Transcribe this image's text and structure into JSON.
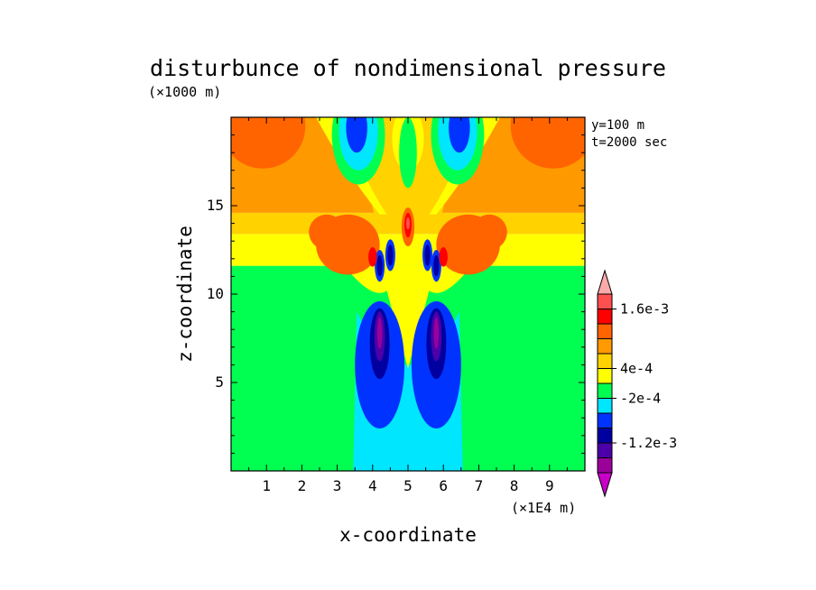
{
  "chart_data": {
    "type": "heatmap",
    "title": "disturbunce of nondimensional pressure",
    "xlabel": "x-coordinate",
    "ylabel": "z-coordinate",
    "x_unit": "(×1E4 m)",
    "y_unit": "(×1000 m)",
    "annotations": [
      "y=100 m",
      "t=2000 sec"
    ],
    "xlim": [
      0,
      10
    ],
    "ylim": [
      0,
      20
    ],
    "x_ticks": [
      1,
      2,
      3,
      4,
      5,
      6,
      7,
      8,
      9
    ],
    "y_ticks": [
      5,
      10,
      15
    ],
    "colorbar": {
      "levels": [
        -0.0018,
        -0.0015,
        -0.0012,
        -0.0009,
        -0.0006,
        -0.0002,
        0.0001,
        0.0004,
        0.0007,
        0.001,
        0.0013,
        0.0016,
        0.0019
      ],
      "colors": [
        "#c800c8",
        "#9b009b",
        "#4b00aa",
        "#0000a0",
        "#0033ff",
        "#00e6ff",
        "#00ff50",
        "#ffff00",
        "#ffd200",
        "#ff9900",
        "#ff6400",
        "#ff0000",
        "#ff5050",
        "#ffaaaa"
      ],
      "labels": [
        {
          "value": 0.0016,
          "text": "1.6e-3"
        },
        {
          "value": 0.0004,
          "text": "4e-4"
        },
        {
          "value": -0.0002,
          "text": "-2e-4"
        },
        {
          "value": -0.0012,
          "text": "-1.2e-3"
        }
      ]
    },
    "grid": false,
    "legend": "colorbar-right"
  }
}
